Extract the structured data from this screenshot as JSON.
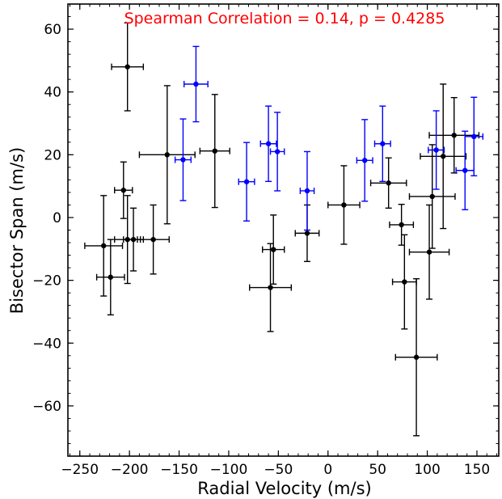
{
  "chart_data": {
    "type": "scatter",
    "xlabel": "Radial Velocity (m/s)",
    "ylabel": "Bisector Span (m/s)",
    "xlim": [
      -262,
      172
    ],
    "ylim": [
      -76,
      68
    ],
    "xticks": [
      -250,
      -200,
      -150,
      -100,
      -50,
      0,
      50,
      100,
      150
    ],
    "yticks": [
      -60,
      -40,
      -20,
      0,
      20,
      40,
      60
    ],
    "xtick_labels": [
      "−250",
      "−200",
      "−150",
      "−100",
      "−50",
      "0",
      "50",
      "100",
      "150"
    ],
    "ytick_labels": [
      "−60",
      "−40",
      "−20",
      "0",
      "20",
      "40",
      "60"
    ],
    "annotation": "Spearman Correlation = 0.14, p = 0.4285",
    "annotation_color": "#ff0000",
    "grid": false,
    "series": [
      {
        "color": "#000000",
        "points": [
          {
            "x": -202,
            "y": 48,
            "xerr": 16,
            "yerr": 14
          },
          {
            "x": -226,
            "y": -9,
            "xerr": 19,
            "yerr": 16
          },
          {
            "x": -219,
            "y": -19,
            "xerr": 14,
            "yerr": 12
          },
          {
            "x": -206,
            "y": 8.7,
            "xerr": 9,
            "yerr": 9
          },
          {
            "x": -202,
            "y": -7,
            "xerr": 13,
            "yerr": 14
          },
          {
            "x": -196,
            "y": -7,
            "xerr": 10,
            "yerr": 10
          },
          {
            "x": -176,
            "y": -7,
            "xerr": 16,
            "yerr": 11
          },
          {
            "x": -162,
            "y": 20,
            "xerr": 28,
            "yerr": 22
          },
          {
            "x": -114,
            "y": 21.2,
            "xerr": 15,
            "yerr": 18
          },
          {
            "x": -58,
            "y": -22.3,
            "xerr": 21,
            "yerr": 14
          },
          {
            "x": -55,
            "y": -10.2,
            "xerr": 11,
            "yerr": 11
          },
          {
            "x": -21,
            "y": -5,
            "xerr": 12,
            "yerr": 9
          },
          {
            "x": 16,
            "y": 4,
            "xerr": 16,
            "yerr": 12.5
          },
          {
            "x": 61,
            "y": 11,
            "xerr": 18,
            "yerr": 8
          },
          {
            "x": 74,
            "y": -2.3,
            "xerr": 12,
            "yerr": 6.5
          },
          {
            "x": 77,
            "y": -20.5,
            "xerr": 12,
            "yerr": 15
          },
          {
            "x": 89,
            "y": -44.5,
            "xerr": 21,
            "yerr": 25
          },
          {
            "x": 102,
            "y": -11,
            "xerr": 20,
            "yerr": 15
          },
          {
            "x": 105,
            "y": 6.7,
            "xerr": 23,
            "yerr": 16.5
          },
          {
            "x": 116,
            "y": 19.5,
            "xerr": 23,
            "yerr": 23
          },
          {
            "x": 127,
            "y": 26.2,
            "xerr": 25,
            "yerr": 12
          }
        ]
      },
      {
        "color": "#0000ff",
        "points": [
          {
            "x": -133,
            "y": 42.5,
            "xerr": 12,
            "yerr": 12
          },
          {
            "x": -146,
            "y": 18.4,
            "xerr": 8,
            "yerr": 13
          },
          {
            "x": -82,
            "y": 11.4,
            "xerr": 8,
            "yerr": 12.5
          },
          {
            "x": -60,
            "y": 23.5,
            "xerr": 8,
            "yerr": 12
          },
          {
            "x": -51,
            "y": 21,
            "xerr": 7,
            "yerr": 12.5
          },
          {
            "x": -21,
            "y": 8.5,
            "xerr": 7,
            "yerr": 12.5
          },
          {
            "x": 37,
            "y": 18.2,
            "xerr": 8,
            "yerr": 13
          },
          {
            "x": 55,
            "y": 23.5,
            "xerr": 8,
            "yerr": 12
          },
          {
            "x": 109,
            "y": 21.5,
            "xerr": 8,
            "yerr": 12.5
          },
          {
            "x": 138,
            "y": 15,
            "xerr": 9,
            "yerr": 12.5
          },
          {
            "x": 147,
            "y": 25.8,
            "xerr": 9,
            "yerr": 12.5
          }
        ]
      }
    ]
  }
}
